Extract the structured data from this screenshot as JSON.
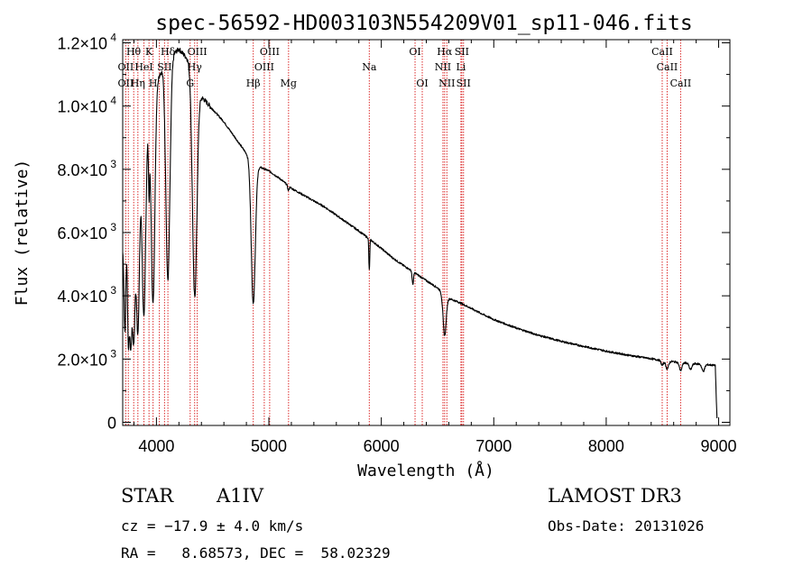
{
  "chart_data": {
    "type": "line",
    "title": "spec-56592-HD003103N554209V01_sp11-046.fits",
    "xlabel": "Wavelength (Å)",
    "ylabel": "Flux (relative)",
    "xlim": [
      3700,
      9100
    ],
    "ylim": [
      -100,
      12100
    ],
    "x_ticks": [
      4000,
      5000,
      6000,
      7000,
      8000,
      9000
    ],
    "x_tick_labels": [
      "4000",
      "5000",
      "6000",
      "7000",
      "8000",
      "9000"
    ],
    "y_ticks": [
      {
        "value": 0,
        "mantissa": "0",
        "exp": ""
      },
      {
        "value": 2000,
        "mantissa": "2.0×10",
        "exp": "3"
      },
      {
        "value": 4000,
        "mantissa": "4.0×10",
        "exp": "3"
      },
      {
        "value": 6000,
        "mantissa": "6.0×10",
        "exp": "3"
      },
      {
        "value": 8000,
        "mantissa": "8.0×10",
        "exp": "3"
      },
      {
        "value": 10000,
        "mantissa": "1.0×10",
        "exp": "4"
      },
      {
        "value": 12000,
        "mantissa": "1.2×10",
        "exp": "4"
      }
    ],
    "continuum": [
      [
        3700,
        5500
      ],
      [
        3900,
        9000
      ],
      [
        4000,
        10800
      ],
      [
        4100,
        11500
      ],
      [
        4200,
        11800
      ],
      [
        4300,
        11400
      ],
      [
        4400,
        10300
      ],
      [
        4500,
        9900
      ],
      [
        4600,
        9500
      ],
      [
        4700,
        9000
      ],
      [
        4800,
        8500
      ],
      [
        4900,
        8100
      ],
      [
        5000,
        7950
      ],
      [
        5100,
        7700
      ],
      [
        5200,
        7400
      ],
      [
        5300,
        7200
      ],
      [
        5400,
        7000
      ],
      [
        5500,
        6800
      ],
      [
        5600,
        6550
      ],
      [
        5700,
        6300
      ],
      [
        5800,
        6050
      ],
      [
        5900,
        5780
      ],
      [
        6000,
        5500
      ],
      [
        6100,
        5200
      ],
      [
        6200,
        4950
      ],
      [
        6300,
        4720
      ],
      [
        6400,
        4480
      ],
      [
        6500,
        4250
      ],
      [
        6600,
        3920
      ],
      [
        6700,
        3780
      ],
      [
        6800,
        3600
      ],
      [
        6900,
        3420
      ],
      [
        7000,
        3250
      ],
      [
        7200,
        2980
      ],
      [
        7400,
        2750
      ],
      [
        7600,
        2560
      ],
      [
        7800,
        2400
      ],
      [
        8000,
        2250
      ],
      [
        8200,
        2120
      ],
      [
        8400,
        2010
      ],
      [
        8500,
        1950
      ],
      [
        8700,
        1880
      ],
      [
        8800,
        1850
      ],
      [
        8900,
        1820
      ],
      [
        8970,
        1800
      ],
      [
        8985,
        100
      ]
    ],
    "absorption_lines": [
      {
        "center": 3720,
        "depth": 3000,
        "width": 8
      },
      {
        "center": 3750,
        "depth": 3500,
        "width": 8
      },
      {
        "center": 3771,
        "depth": 4000,
        "width": 10
      },
      {
        "center": 3798,
        "depth": 4500,
        "width": 12
      },
      {
        "center": 3835,
        "depth": 5000,
        "width": 14
      },
      {
        "center": 3889,
        "depth": 5500,
        "width": 15
      },
      {
        "center": 3934,
        "depth": 2000,
        "width": 5
      },
      {
        "center": 3970,
        "depth": 6500,
        "width": 16
      },
      {
        "center": 4102,
        "depth": 7000,
        "width": 18
      },
      {
        "center": 4340,
        "depth": 7000,
        "width": 20
      },
      {
        "center": 4861,
        "depth": 4500,
        "width": 18
      },
      {
        "center": 5173,
        "depth": 150,
        "width": 6
      },
      {
        "center": 5893,
        "depth": 1000,
        "width": 4
      },
      {
        "center": 6280,
        "depth": 400,
        "width": 6
      },
      {
        "center": 6563,
        "depth": 1300,
        "width": 14
      },
      {
        "center": 8498,
        "depth": 150,
        "width": 10
      },
      {
        "center": 8542,
        "depth": 250,
        "width": 12
      },
      {
        "center": 8662,
        "depth": 250,
        "width": 12
      },
      {
        "center": 8750,
        "depth": 200,
        "width": 12
      },
      {
        "center": 8863,
        "depth": 220,
        "width": 12
      }
    ],
    "line_markers": [
      3727,
      3750,
      3798,
      3835,
      3889,
      3934,
      3970,
      4026,
      4072,
      4102,
      4300,
      4340,
      4363,
      4861,
      4959,
      5007,
      5175,
      5893,
      6300,
      6364,
      6548,
      6563,
      6583,
      6708,
      6716,
      6731,
      8498,
      8542,
      8662
    ],
    "marker_labels": [
      {
        "text": "Hθ",
        "x": 3797,
        "row": 1
      },
      {
        "text": "K",
        "x": 3934,
        "row": 1
      },
      {
        "text": "Hδ",
        "x": 4102,
        "row": 1
      },
      {
        "text": "OIII",
        "x": 4363,
        "row": 1
      },
      {
        "text": "OIII",
        "x": 5007,
        "row": 1
      },
      {
        "text": "OI",
        "x": 6300,
        "row": 1
      },
      {
        "text": "Hα",
        "x": 6563,
        "row": 1
      },
      {
        "text": "SII",
        "x": 6716,
        "row": 1
      },
      {
        "text": "CaII",
        "x": 8498,
        "row": 1
      },
      {
        "text": "OII",
        "x": 3727,
        "row": 2
      },
      {
        "text": "HeI",
        "x": 3889,
        "row": 2
      },
      {
        "text": "SII",
        "x": 4072,
        "row": 2
      },
      {
        "text": "Hγ",
        "x": 4340,
        "row": 2
      },
      {
        "text": "OIII",
        "x": 4959,
        "row": 2
      },
      {
        "text": "Na",
        "x": 5893,
        "row": 2
      },
      {
        "text": "NII",
        "x": 6548,
        "row": 2
      },
      {
        "text": "Li",
        "x": 6708,
        "row": 2
      },
      {
        "text": "CaII",
        "x": 8542,
        "row": 2
      },
      {
        "text": "OII",
        "x": 3727,
        "row": 3
      },
      {
        "text": "Hη",
        "x": 3835,
        "row": 3
      },
      {
        "text": "H",
        "x": 3970,
        "row": 3
      },
      {
        "text": "G",
        "x": 4300,
        "row": 3
      },
      {
        "text": "Hβ",
        "x": 4861,
        "row": 3
      },
      {
        "text": "Mg",
        "x": 5175,
        "row": 3
      },
      {
        "text": "OI",
        "x": 6364,
        "row": 3
      },
      {
        "text": "NII",
        "x": 6583,
        "row": 3
      },
      {
        "text": "SII",
        "x": 6731,
        "row": 3
      },
      {
        "text": "CaII",
        "x": 8662,
        "row": 3
      }
    ],
    "colors": {
      "spectrum": "#000000",
      "line_marker": "#dc2a2a",
      "axes": "#000000"
    }
  },
  "info": {
    "object_type": "STAR",
    "subclass": "A1IV",
    "cz_text": "cz = −17.9 ± 4.0 km/s",
    "radec_text": "RA =   8.68573, DEC =  58.02329",
    "survey": "LAMOST DR3",
    "obs_date": "Obs-Date: 20131026"
  }
}
